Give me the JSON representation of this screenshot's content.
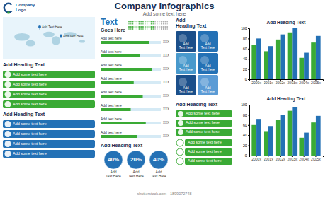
{
  "chart_data": [
    {
      "type": "infographic",
      "title": "Company Infographics",
      "subtitle": "Add some text here",
      "annotations": [
        "Company",
        "Logo",
        "shutterstock.com · 1899072748"
      ],
      "colors": [
        "#1b4f8a",
        "#3aaa35"
      ]
    },
    {
      "type": "map",
      "annotations": [
        "Add Text Here",
        "Add Text Here"
      ],
      "color": "#2471b5"
    },
    {
      "type": "list",
      "title": "Add Heading Text",
      "categories": [
        "Add some text here",
        "Add some text here",
        "Add some text here",
        "Add some text here"
      ],
      "color": "#3aaa35",
      "marker": "dot"
    },
    {
      "type": "list",
      "title": "Add Heading Text",
      "categories": [
        "Add some text here",
        "Add some text here",
        "Add some text here",
        "Add some text here"
      ],
      "color": "#2471b5",
      "marker": "dot"
    },
    {
      "type": "pictogram",
      "title": "Text",
      "subtitle": "Goes Here",
      "values": [
        13,
        13
      ],
      "xlim": [
        0,
        20
      ],
      "color": "#3aaa35"
    },
    {
      "type": "bar",
      "orientation": "horizontal",
      "categories": [
        "Add text here",
        "Add text here",
        "Add text here",
        "Add text here",
        "Add text here",
        "Add text here",
        "Add text here",
        "Add text here"
      ],
      "values": [
        80,
        65,
        85,
        55,
        70,
        50,
        75,
        60
      ],
      "xlim": [
        0,
        100
      ],
      "tick_labels": false,
      "annotations": [
        "XXX",
        "XXX",
        "XXX",
        "XXX",
        "XXX",
        "XXX",
        "XXX",
        "XXX"
      ],
      "color": "#3aaa35"
    },
    {
      "type": "circle",
      "title": "Add Heading Text",
      "categories": [
        "Add\nText Here",
        "Add\nText Here",
        "Add\nText Here"
      ],
      "values": [
        40,
        20,
        40
      ],
      "value_labels": [
        "40%",
        "20%",
        "40%"
      ],
      "data_labels": true,
      "color": "#2471b5"
    },
    {
      "type": "tiles",
      "title": "Add\nHeading Text",
      "categories": [
        "Add\nText Here",
        "Add\nText Here",
        "Add\nText Here",
        "Add\nText Here",
        "Add\nText Here",
        "Add\nText Here"
      ],
      "colors": [
        "#1b4f8a",
        "#2471b5",
        "#4899cc",
        "#2471b5",
        "#1b4f8a",
        "#5b9bd5"
      ]
    },
    {
      "type": "list",
      "title": "Add Heading Text",
      "categories": [
        "Add some text here",
        "Add some text here",
        "Add some text here"
      ],
      "color": "#3aaa35",
      "marker": "dot"
    },
    {
      "type": "list",
      "categories": [
        "Add some text here",
        "Add some text here",
        "Add some text here"
      ],
      "color": "#3aaa35",
      "marker": "ring"
    },
    {
      "type": "bar",
      "title": "Add Heading Text",
      "categories": [
        "2000x",
        "2001x",
        "2002x",
        "2003x",
        "2004x",
        "2005x"
      ],
      "series": [
        {
          "color": "#3aaa35",
          "values": [
            68,
            55,
            78,
            92,
            42,
            72
          ]
        },
        {
          "color": "#2471b5",
          "values": [
            80,
            65,
            88,
            100,
            52,
            85
          ]
        }
      ],
      "ylim": [
        0,
        100
      ],
      "yticks": [
        0,
        20,
        40,
        60,
        80,
        100
      ],
      "grid": false
    },
    {
      "type": "bar",
      "title": "Add Heading Text",
      "categories": [
        "2000x",
        "2001x",
        "2002x",
        "2003x",
        "2004x",
        "2005x"
      ],
      "series": [
        {
          "color": "#3aaa35",
          "values": [
            60,
            48,
            70,
            88,
            35,
            65
          ]
        },
        {
          "color": "#2471b5",
          "values": [
            72,
            58,
            80,
            95,
            45,
            78
          ]
        }
      ],
      "ylim": [
        0,
        100
      ],
      "yticks": [
        0,
        20,
        40,
        60,
        80,
        100
      ],
      "grid": false
    }
  ]
}
